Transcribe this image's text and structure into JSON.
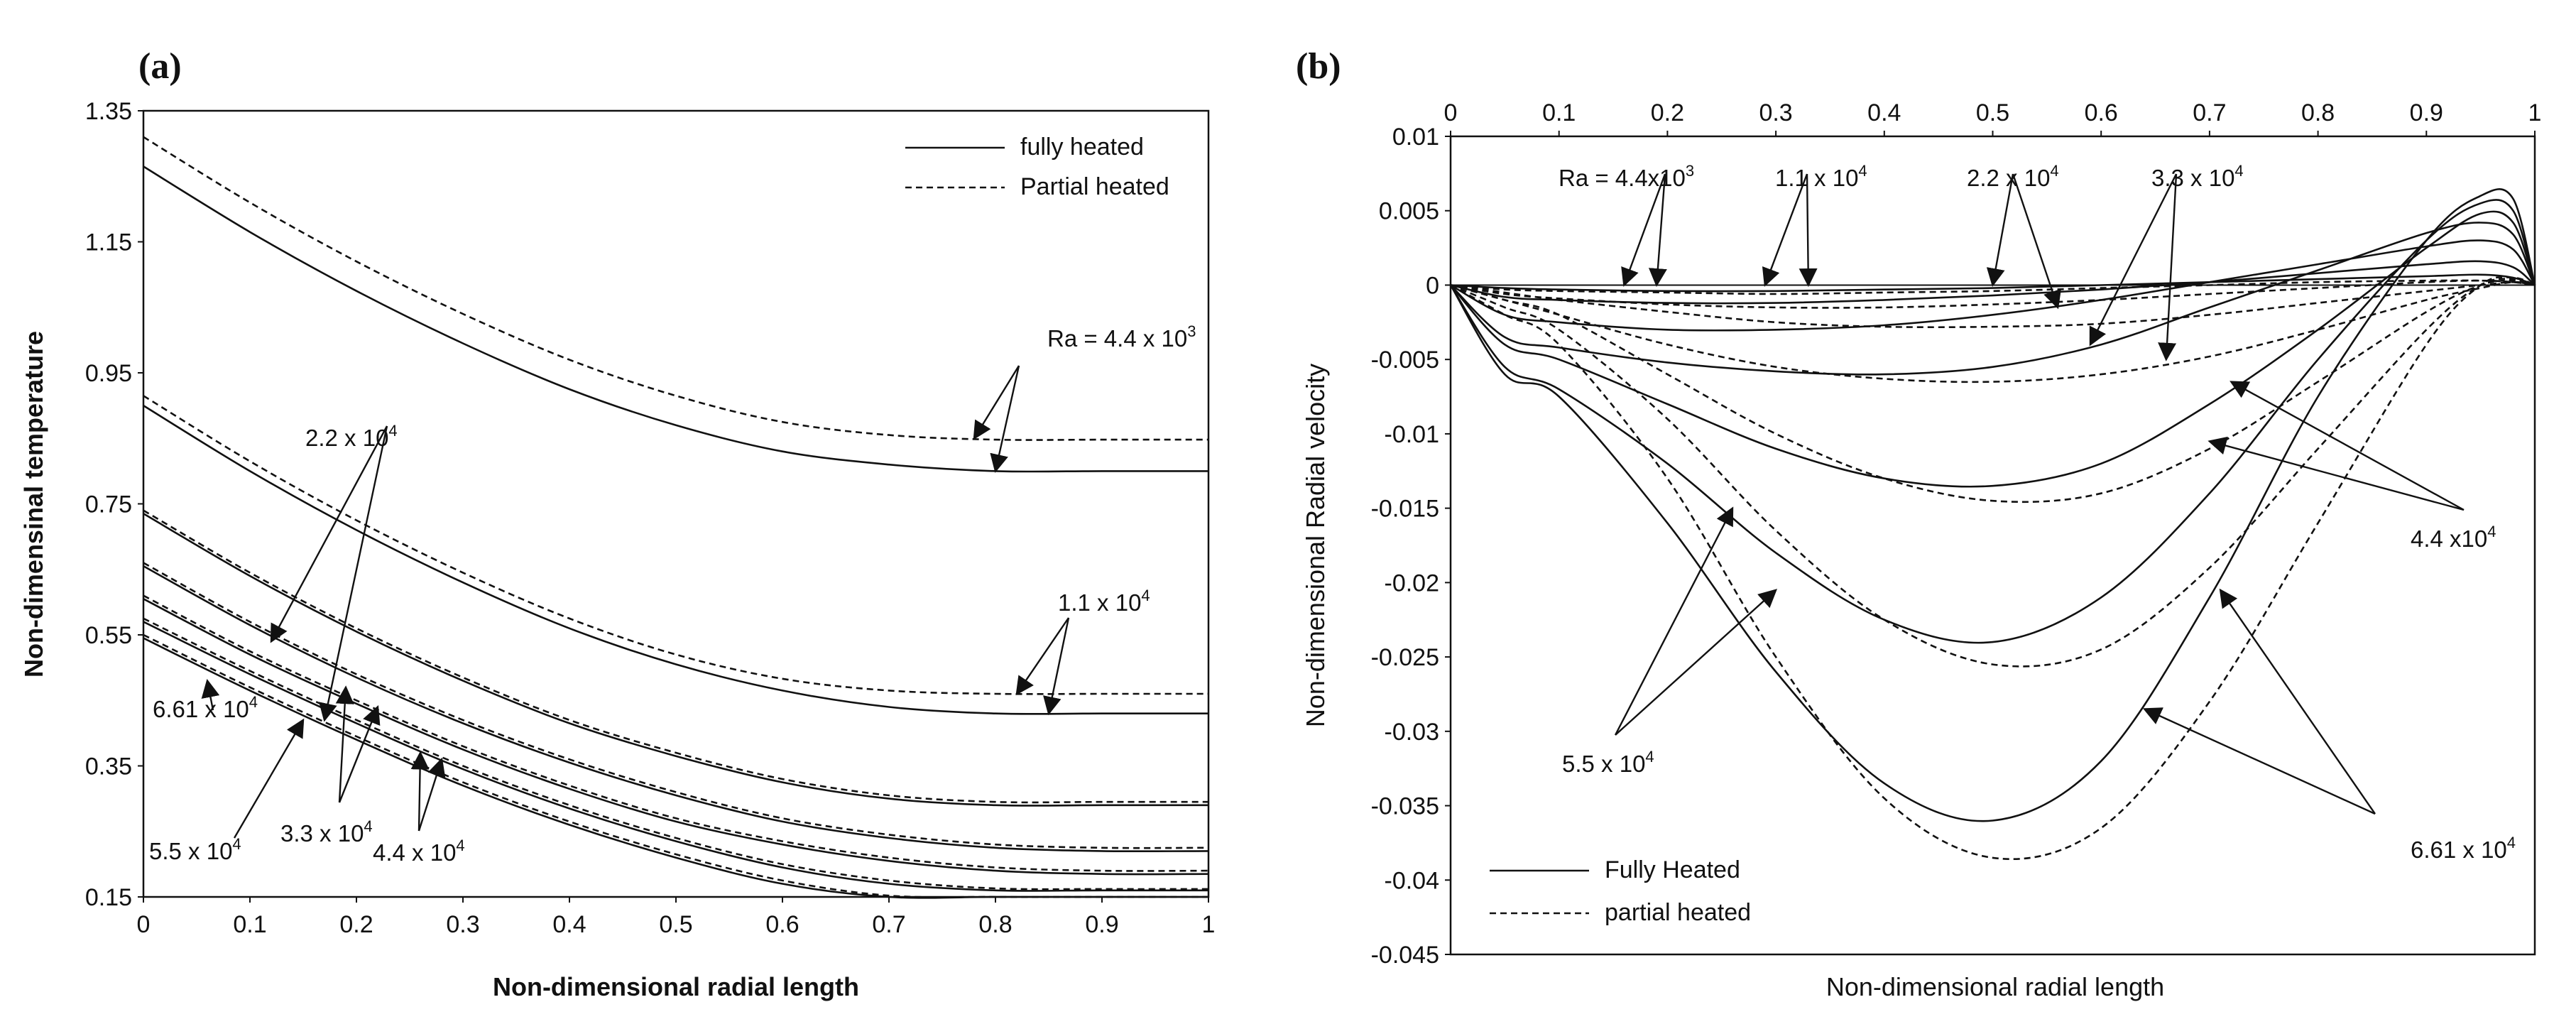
{
  "chart_data": [
    {
      "panel": "(a)",
      "type": "line",
      "title": "",
      "xlabel": "Non-dimensional radial length",
      "ylabel": "Non-dimensinal temperature",
      "xlim": [
        0,
        1
      ],
      "ylim": [
        0.15,
        1.35
      ],
      "xticks": [
        0,
        0.1,
        0.2,
        0.3,
        0.4,
        0.5,
        0.6,
        0.7,
        0.8,
        0.9,
        1
      ],
      "yticks": [
        0.15,
        0.35,
        0.55,
        0.75,
        0.95,
        1.15,
        1.35
      ],
      "xtick_labels": [
        "0",
        "0.1",
        "0.2",
        "0.3",
        "0.4",
        "0.5",
        "0.6",
        "0.7",
        "0.8",
        "0.9",
        "1"
      ],
      "ytick_labels": [
        "0.15",
        "0.35",
        "0.55",
        "0.75",
        "0.95",
        "1.15",
        "1.35"
      ],
      "legend": {
        "placement": "top-right",
        "entries": [
          {
            "label": "fully heated",
            "style": "solid"
          },
          {
            "label": "Partial heated",
            "style": "dashed"
          }
        ]
      },
      "x": [
        0,
        0.1,
        0.2,
        0.3,
        0.4,
        0.5,
        0.6,
        0.7,
        0.8,
        0.9,
        1
      ],
      "series": [
        {
          "name": "Ra = 4.4 x 10^3 fully heated",
          "style": "solid",
          "values": [
            1.265,
            1.165,
            1.075,
            0.995,
            0.925,
            0.87,
            0.83,
            0.81,
            0.8,
            0.8,
            0.8
          ]
        },
        {
          "name": "Ra = 4.4 x 10^3 partial heated",
          "style": "dashed",
          "values": [
            1.31,
            1.21,
            1.12,
            1.04,
            0.97,
            0.915,
            0.875,
            0.855,
            0.848,
            0.848,
            0.848
          ]
        },
        {
          "name": "Ra = 1.1 x 10^4 fully heated",
          "style": "solid",
          "values": [
            0.9,
            0.8,
            0.71,
            0.63,
            0.56,
            0.505,
            0.465,
            0.44,
            0.43,
            0.43,
            0.43
          ]
        },
        {
          "name": "Ra = 1.1 x 10^4 partial heated",
          "style": "dashed",
          "values": [
            0.915,
            0.815,
            0.725,
            0.645,
            0.575,
            0.52,
            0.483,
            0.465,
            0.46,
            0.46,
            0.46
          ]
        },
        {
          "name": "Ra = 2.2 x 10^4 fully heated",
          "style": "solid",
          "values": [
            0.735,
            0.64,
            0.555,
            0.48,
            0.415,
            0.365,
            0.325,
            0.3,
            0.29,
            0.29,
            0.29
          ]
        },
        {
          "name": "Ra = 2.2 x 10^4 partial heated",
          "style": "dashed",
          "values": [
            0.74,
            0.645,
            0.56,
            0.485,
            0.42,
            0.37,
            0.33,
            0.305,
            0.295,
            0.295,
            0.295
          ]
        },
        {
          "name": "Ra = 3.3 x 10^4 fully heated",
          "style": "solid",
          "values": [
            0.655,
            0.565,
            0.485,
            0.415,
            0.355,
            0.305,
            0.265,
            0.24,
            0.225,
            0.22,
            0.22
          ]
        },
        {
          "name": "Ra = 3.3 x 10^4 partial heated",
          "style": "dashed",
          "values": [
            0.66,
            0.57,
            0.49,
            0.42,
            0.36,
            0.31,
            0.27,
            0.245,
            0.23,
            0.225,
            0.225
          ]
        },
        {
          "name": "Ra = 4.4 x 10^4 fully heated",
          "style": "solid",
          "values": [
            0.605,
            0.52,
            0.445,
            0.375,
            0.315,
            0.265,
            0.23,
            0.205,
            0.19,
            0.185,
            0.185
          ]
        },
        {
          "name": "Ra = 4.4 x 10^4 partial heated",
          "style": "dashed",
          "values": [
            0.61,
            0.525,
            0.45,
            0.38,
            0.32,
            0.27,
            0.235,
            0.21,
            0.195,
            0.19,
            0.19
          ]
        },
        {
          "name": "Ra = 5.5 x 10^4 fully heated",
          "style": "solid",
          "values": [
            0.57,
            0.49,
            0.415,
            0.345,
            0.285,
            0.235,
            0.195,
            0.17,
            0.16,
            0.16,
            0.16
          ]
        },
        {
          "name": "Ra = 5.5 x 10^4 partial heated",
          "style": "dashed",
          "values": [
            0.575,
            0.495,
            0.42,
            0.35,
            0.29,
            0.24,
            0.2,
            0.175,
            0.163,
            0.162,
            0.162
          ]
        },
        {
          "name": "Ra = 6.61 x 10^4 fully heated",
          "style": "solid",
          "values": [
            0.545,
            0.465,
            0.39,
            0.32,
            0.26,
            0.21,
            0.17,
            0.15,
            0.15,
            0.15,
            0.15
          ]
        },
        {
          "name": "Ra = 6.61 x 10^4 partial heated",
          "style": "dashed",
          "values": [
            0.55,
            0.47,
            0.395,
            0.325,
            0.265,
            0.215,
            0.175,
            0.152,
            0.15,
            0.15,
            0.15
          ]
        }
      ],
      "annotations": [
        {
          "text": "Ra = 4.4 x 10",
          "sup": "3",
          "points_to": [
            [
              0.78,
              0.85
            ],
            [
              0.8,
              0.8
            ]
          ]
        },
        {
          "text": "2.2 x 10",
          "sup": "4",
          "points_to": [
            [
              0.12,
              0.54
            ],
            [
              0.17,
              0.42
            ]
          ]
        },
        {
          "text": "1.1 x 10",
          "sup": "4",
          "points_to": [
            [
              0.82,
              0.46
            ],
            [
              0.85,
              0.43
            ]
          ]
        },
        {
          "text": "6.61 x 10",
          "sup": "4",
          "points_to": [
            [
              0.06,
              0.48
            ]
          ]
        },
        {
          "text": "5.5 x 10",
          "sup": "4",
          "points_to": [
            [
              0.15,
              0.42
            ]
          ]
        },
        {
          "text": "3.3 x 10",
          "sup": "4",
          "points_to": [
            [
              0.19,
              0.47
            ],
            [
              0.22,
              0.44
            ]
          ]
        },
        {
          "text": "4.4 x 10",
          "sup": "4",
          "points_to": [
            [
              0.26,
              0.37
            ],
            [
              0.28,
              0.36
            ]
          ]
        }
      ]
    },
    {
      "panel": "(b)",
      "type": "line",
      "title": "",
      "xlabel": "Non-dimensional radial length",
      "ylabel": "Non-dimensional Radial velocity",
      "xlim": [
        0,
        1
      ],
      "ylim": [
        -0.045,
        0.01
      ],
      "x_axis_position": "top",
      "xticks": [
        0,
        0.1,
        0.2,
        0.3,
        0.4,
        0.5,
        0.6,
        0.7,
        0.8,
        0.9,
        1
      ],
      "yticks": [
        0.01,
        0.005,
        0,
        -0.005,
        -0.01,
        -0.015,
        -0.02,
        -0.025,
        -0.03,
        -0.035,
        -0.04,
        -0.045
      ],
      "xtick_labels": [
        "0",
        "0.1",
        "0.2",
        "0.3",
        "0.4",
        "0.5",
        "0.6",
        "0.7",
        "0.8",
        "0.9",
        "1"
      ],
      "ytick_labels": [
        "0.01",
        "0.005",
        "0",
        "-0.005",
        "-0.01",
        "-0.015",
        "-0.02",
        "-0.025",
        "-0.03",
        "-0.035",
        "-0.04",
        "-0.045"
      ],
      "legend": {
        "placement": "bottom-left",
        "entries": [
          {
            "label": "Fully Heated",
            "style": "solid"
          },
          {
            "label": "partial heated",
            "style": "dashed"
          }
        ]
      },
      "x": [
        0,
        0.05,
        0.1,
        0.2,
        0.3,
        0.4,
        0.5,
        0.6,
        0.7,
        0.8,
        0.9,
        0.95,
        0.98,
        1
      ],
      "series": [
        {
          "name": "Ra = 4.4x10^3 fully heated",
          "style": "solid",
          "values": [
            0,
            -0.0002,
            -0.0003,
            -0.0004,
            -0.0004,
            -0.0003,
            -0.0002,
            0,
            0.0002,
            0.0004,
            0.0006,
            0.0007,
            0.0005,
            0
          ]
        },
        {
          "name": "Ra = 4.4x10^3 partial heated",
          "style": "dashed",
          "values": [
            0,
            -0.0003,
            -0.0004,
            -0.0005,
            -0.0006,
            -0.0005,
            -0.0004,
            -0.0002,
            0,
            0.0002,
            0.0003,
            0.0003,
            0.0002,
            0
          ]
        },
        {
          "name": "Ra = 1.1 x 10^4 fully heated",
          "style": "solid",
          "values": [
            0,
            -0.0008,
            -0.001,
            -0.0012,
            -0.0012,
            -0.001,
            -0.0007,
            -0.0003,
            0.0002,
            0.0008,
            0.0014,
            0.0016,
            0.0012,
            0
          ]
        },
        {
          "name": "Ra = 1.1 x 10^4 partial heated",
          "style": "dashed",
          "values": [
            0,
            -0.0006,
            -0.0009,
            -0.0013,
            -0.0015,
            -0.0015,
            -0.0013,
            -0.001,
            -0.0006,
            -0.0002,
            0.0002,
            0.0003,
            0.0002,
            0
          ]
        },
        {
          "name": "Ra = 2.2 x 10^4 fully heated",
          "style": "solid",
          "values": [
            0,
            -0.002,
            -0.0025,
            -0.003,
            -0.003,
            -0.0027,
            -0.002,
            -0.001,
            0.0002,
            0.0014,
            0.0026,
            0.003,
            0.0024,
            0
          ]
        },
        {
          "name": "Ra = 2.2 x 10^4 partial heated",
          "style": "dashed",
          "values": [
            0,
            -0.0005,
            -0.001,
            -0.0018,
            -0.0025,
            -0.0028,
            -0.0028,
            -0.0026,
            -0.002,
            -0.0012,
            -0.0004,
            0,
            0.0002,
            0
          ]
        },
        {
          "name": "Ra = 3.3 x 10^4 fully heated",
          "style": "solid",
          "values": [
            0,
            -0.0035,
            -0.0042,
            -0.0052,
            -0.0058,
            -0.006,
            -0.0055,
            -0.004,
            -0.0015,
            0.001,
            0.0035,
            0.0042,
            0.0034,
            0
          ]
        },
        {
          "name": "Ra = 3.3 x 10^4 partial heated",
          "style": "dashed",
          "values": [
            0,
            -0.001,
            -0.002,
            -0.004,
            -0.0055,
            -0.0063,
            -0.0065,
            -0.006,
            -0.0048,
            -0.003,
            -0.001,
            -0.0002,
            0.0002,
            0
          ]
        },
        {
          "name": "Ra = 4.4 x 10^4 fully heated",
          "style": "solid",
          "values": [
            0,
            -0.004,
            -0.005,
            -0.008,
            -0.011,
            -0.013,
            -0.0135,
            -0.012,
            -0.008,
            -0.003,
            0.0025,
            0.0048,
            0.0042,
            0
          ]
        },
        {
          "name": "Ra = 4.4 x 10^4 partial heated",
          "style": "dashed",
          "values": [
            0,
            -0.001,
            -0.002,
            -0.006,
            -0.01,
            -0.013,
            -0.0145,
            -0.014,
            -0.011,
            -0.0065,
            -0.0018,
            0,
            0.0003,
            0
          ]
        },
        {
          "name": "Ra = 5.5 x 10^4 fully heated",
          "style": "solid",
          "values": [
            0,
            -0.0055,
            -0.007,
            -0.012,
            -0.018,
            -0.0225,
            -0.024,
            -0.021,
            -0.014,
            -0.005,
            0.003,
            0.0055,
            0.005,
            0
          ]
        },
        {
          "name": "Ra = 5.5 x 10^4 partial heated",
          "style": "dashed",
          "values": [
            0,
            -0.0015,
            -0.003,
            -0.009,
            -0.0165,
            -0.0225,
            -0.0255,
            -0.0245,
            -0.019,
            -0.011,
            -0.003,
            0,
            0.0004,
            0
          ]
        },
        {
          "name": "Ra = 6.61 x 10^4 fully heated",
          "style": "solid",
          "values": [
            0,
            -0.006,
            -0.0075,
            -0.016,
            -0.026,
            -0.0335,
            -0.036,
            -0.032,
            -0.021,
            -0.0075,
            0.003,
            0.006,
            0.0058,
            0
          ]
        },
        {
          "name": "Ra = 6.61 x 10^4 partial heated",
          "style": "dashed",
          "values": [
            0,
            -0.002,
            -0.004,
            -0.013,
            -0.025,
            -0.0345,
            -0.0385,
            -0.0365,
            -0.028,
            -0.016,
            -0.004,
            0,
            0.0005,
            0
          ]
        }
      ],
      "annotations": [
        {
          "text": "Ra = 4.4x10",
          "sup": "3",
          "points_to": [
            [
              0.16,
              0
            ],
            [
              0.19,
              0
            ]
          ]
        },
        {
          "text": "1.1 x 10",
          "sup": "4",
          "points_to": [
            [
              0.29,
              0
            ],
            [
              0.33,
              0
            ]
          ]
        },
        {
          "text": "2.2 x 10",
          "sup": "4",
          "points_to": [
            [
              0.5,
              0
            ],
            [
              0.56,
              -0.0015
            ]
          ]
        },
        {
          "text": "3.3 x 10",
          "sup": "4",
          "points_to": [
            [
              0.59,
              -0.004
            ],
            [
              0.66,
              -0.005
            ]
          ]
        },
        {
          "text": "4.4 x10",
          "sup": "4",
          "points_to": [
            [
              0.72,
              -0.0065
            ],
            [
              0.7,
              -0.0105
            ]
          ]
        },
        {
          "text": "5.5 x 10",
          "sup": "4",
          "points_to": [
            [
              0.26,
              -0.015
            ],
            [
              0.3,
              -0.0205
            ]
          ]
        },
        {
          "text": "6.61 x 10",
          "sup": "4",
          "points_to": [
            [
              0.71,
              -0.0205
            ],
            [
              0.64,
              -0.0285
            ]
          ]
        }
      ]
    }
  ],
  "panel_labels": {
    "a": "(a)",
    "b": "(b)"
  }
}
